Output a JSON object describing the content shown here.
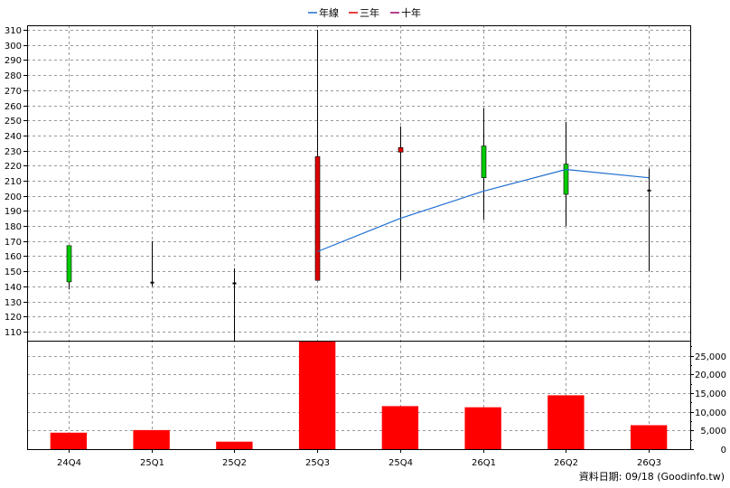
{
  "legend": [
    {
      "label": "年線",
      "color": "#1f6fd0"
    },
    {
      "label": "三年",
      "color": "#e00000"
    },
    {
      "label": "十年",
      "color": "#a0006a"
    }
  ],
  "source_text": "資料日期: 09/18  (Goodinfo.tw)",
  "chart_data": [
    {
      "type": "candlestick",
      "categories": [
        "24Q4",
        "25Q1",
        "25Q2",
        "25Q3",
        "25Q4",
        "26Q1",
        "26Q2",
        "26Q3"
      ],
      "yticks": [
        110,
        120,
        130,
        140,
        150,
        160,
        170,
        180,
        190,
        200,
        210,
        220,
        230,
        240,
        250,
        260,
        270,
        280,
        290,
        300,
        310
      ],
      "ylim": [
        104,
        313
      ],
      "grid": true,
      "series": [
        {
          "kind": "ohlc",
          "open": [
            143,
            141.5,
            141,
            144,
            229,
            212,
            201,
            202.5
          ],
          "high": [
            167,
            170,
            152,
            310,
            246,
            258,
            249,
            218
          ],
          "low": [
            138,
            140,
            104,
            144,
            144,
            184,
            180,
            150
          ],
          "close": [
            167,
            142.5,
            142,
            226,
            232,
            233,
            221,
            203.5
          ],
          "colors": [
            "#00cc00",
            "#000000",
            "#000000",
            "#e00000",
            "#e00000",
            "#00cc00",
            "#00cc00",
            "#000000"
          ]
        },
        {
          "name": "年線",
          "kind": "line",
          "color": "#1f6fd0",
          "x": [
            "25Q3",
            "25Q4",
            "26Q1",
            "26Q2",
            "26Q3"
          ],
          "values": [
            163,
            185,
            203,
            217.5,
            212
          ]
        }
      ]
    },
    {
      "type": "bar",
      "categories": [
        "24Q4",
        "25Q1",
        "25Q2",
        "25Q3",
        "25Q4",
        "26Q1",
        "26Q2",
        "26Q3"
      ],
      "values": [
        4400,
        5100,
        2000,
        29000,
        11500,
        11200,
        14400,
        6400
      ],
      "color": "#ff0000",
      "yticks": [
        0,
        5000,
        10000,
        15000,
        20000,
        25000
      ],
      "ytick_labels": [
        "0",
        "5,000",
        "10,000",
        "15,000",
        "20,000",
        "25,000"
      ],
      "ylim": [
        0,
        29000
      ],
      "grid": true
    }
  ]
}
